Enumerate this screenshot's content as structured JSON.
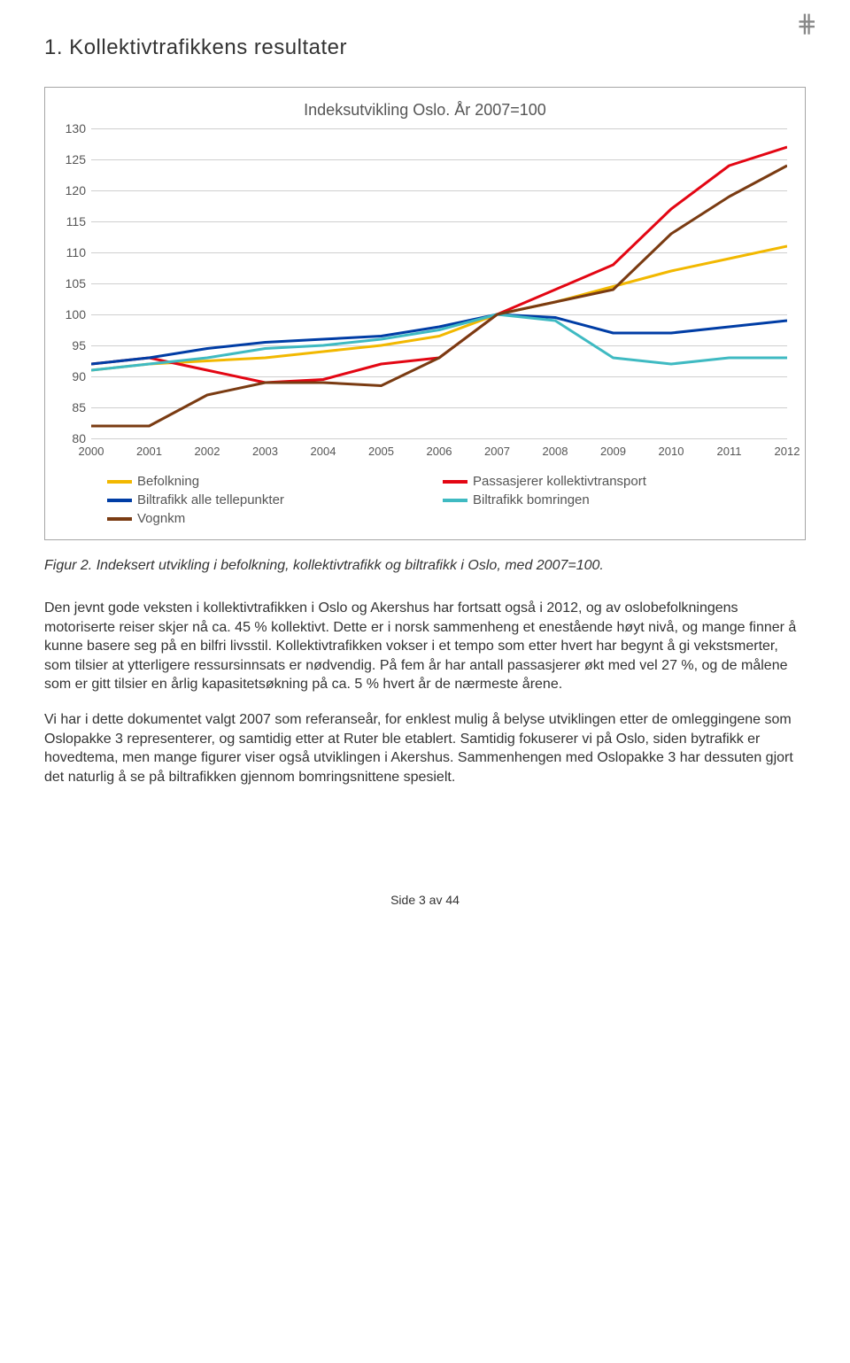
{
  "logo_glyph": "⋕",
  "section_title": "1. Kollektivtrafikkens resultater",
  "chart": {
    "type": "line",
    "title": "Indeksutvikling Oslo. År 2007=100",
    "ylim": [
      80,
      130
    ],
    "ytick_step": 5,
    "yticks": [
      80,
      85,
      90,
      95,
      100,
      105,
      110,
      115,
      120,
      125,
      130
    ],
    "xcats": [
      "2000",
      "2001",
      "2002",
      "2003",
      "2004",
      "2005",
      "2006",
      "2007",
      "2008",
      "2009",
      "2010",
      "2011",
      "2012"
    ],
    "grid_color": "#cfcfcf",
    "background_color": "#ffffff",
    "line_width": 3,
    "series": [
      {
        "name": "Befolkning",
        "color": "#f2b800",
        "values": [
          91,
          92,
          92.5,
          93,
          94,
          95,
          96.5,
          100,
          102,
          104.5,
          107,
          109,
          111
        ]
      },
      {
        "name": "Passasjerer kollektivtransport",
        "color": "#e30613",
        "values": [
          92,
          93,
          91,
          89,
          89.5,
          92,
          93,
          100,
          104,
          108,
          117,
          124,
          127
        ]
      },
      {
        "name": "Biltrafikk alle tellepunkter",
        "color": "#003da5",
        "values": [
          92,
          93,
          94.5,
          95.5,
          96,
          96.5,
          98,
          100,
          99.5,
          97,
          97,
          98,
          99
        ]
      },
      {
        "name": "Biltrafikk bomringen",
        "color": "#3fbac2",
        "values": [
          91,
          92,
          93,
          94.5,
          95,
          96,
          97.5,
          100,
          99,
          93,
          92,
          93,
          93
        ]
      },
      {
        "name": "Vognkm",
        "color": "#7a3b12",
        "values": [
          82,
          82,
          87,
          89,
          89,
          88.5,
          93,
          100,
          102,
          104,
          113,
          119,
          124
        ]
      }
    ]
  },
  "legend": [
    {
      "label": "Befolkning",
      "color": "#f2b800"
    },
    {
      "label": "Passasjerer kollektivtransport",
      "color": "#e30613"
    },
    {
      "label": "Biltrafikk alle tellepunkter",
      "color": "#003da5"
    },
    {
      "label": "Biltrafikk bomringen",
      "color": "#3fbac2"
    },
    {
      "label": "Vognkm",
      "color": "#7a3b12"
    }
  ],
  "figure_caption": "Figur 2. Indeksert utvikling i befolkning, kollektivtrafikk og biltrafikk i Oslo, med 2007=100.",
  "paragraph1": "Den jevnt gode veksten i kollektivtrafikken i Oslo og Akershus har fortsatt også i 2012, og av oslobefolkningens motoriserte reiser skjer nå ca. 45 % kollektivt. Dette er i norsk sammenheng et enestående høyt nivå, og mange finner å kunne basere seg på en bilfri livsstil. Kollektivtrafikken vokser i et tempo som etter hvert har begynt å gi vekstsmerter, som tilsier at ytterligere ressursinnsats er nødvendig. På fem år har antall passasjerer økt med vel 27 %, og de målene som er gitt tilsier en årlig kapasitetsøkning på ca. 5 % hvert år de nærmeste årene.",
  "paragraph2": "Vi har i dette dokumentet valgt 2007 som referanseår, for enklest mulig å belyse utviklingen etter de omleggingene som Oslopakke 3 representerer, og samtidig etter at Ruter ble etablert. Samtidig fokuserer vi på Oslo, siden bytrafikk er hovedtema, men mange figurer viser også utviklingen i Akershus. Sammenhengen med Oslopakke 3 har dessuten gjort det naturlig å se på biltrafikken gjennom bomringsnittene spesielt.",
  "footer": "Side 3 av 44"
}
